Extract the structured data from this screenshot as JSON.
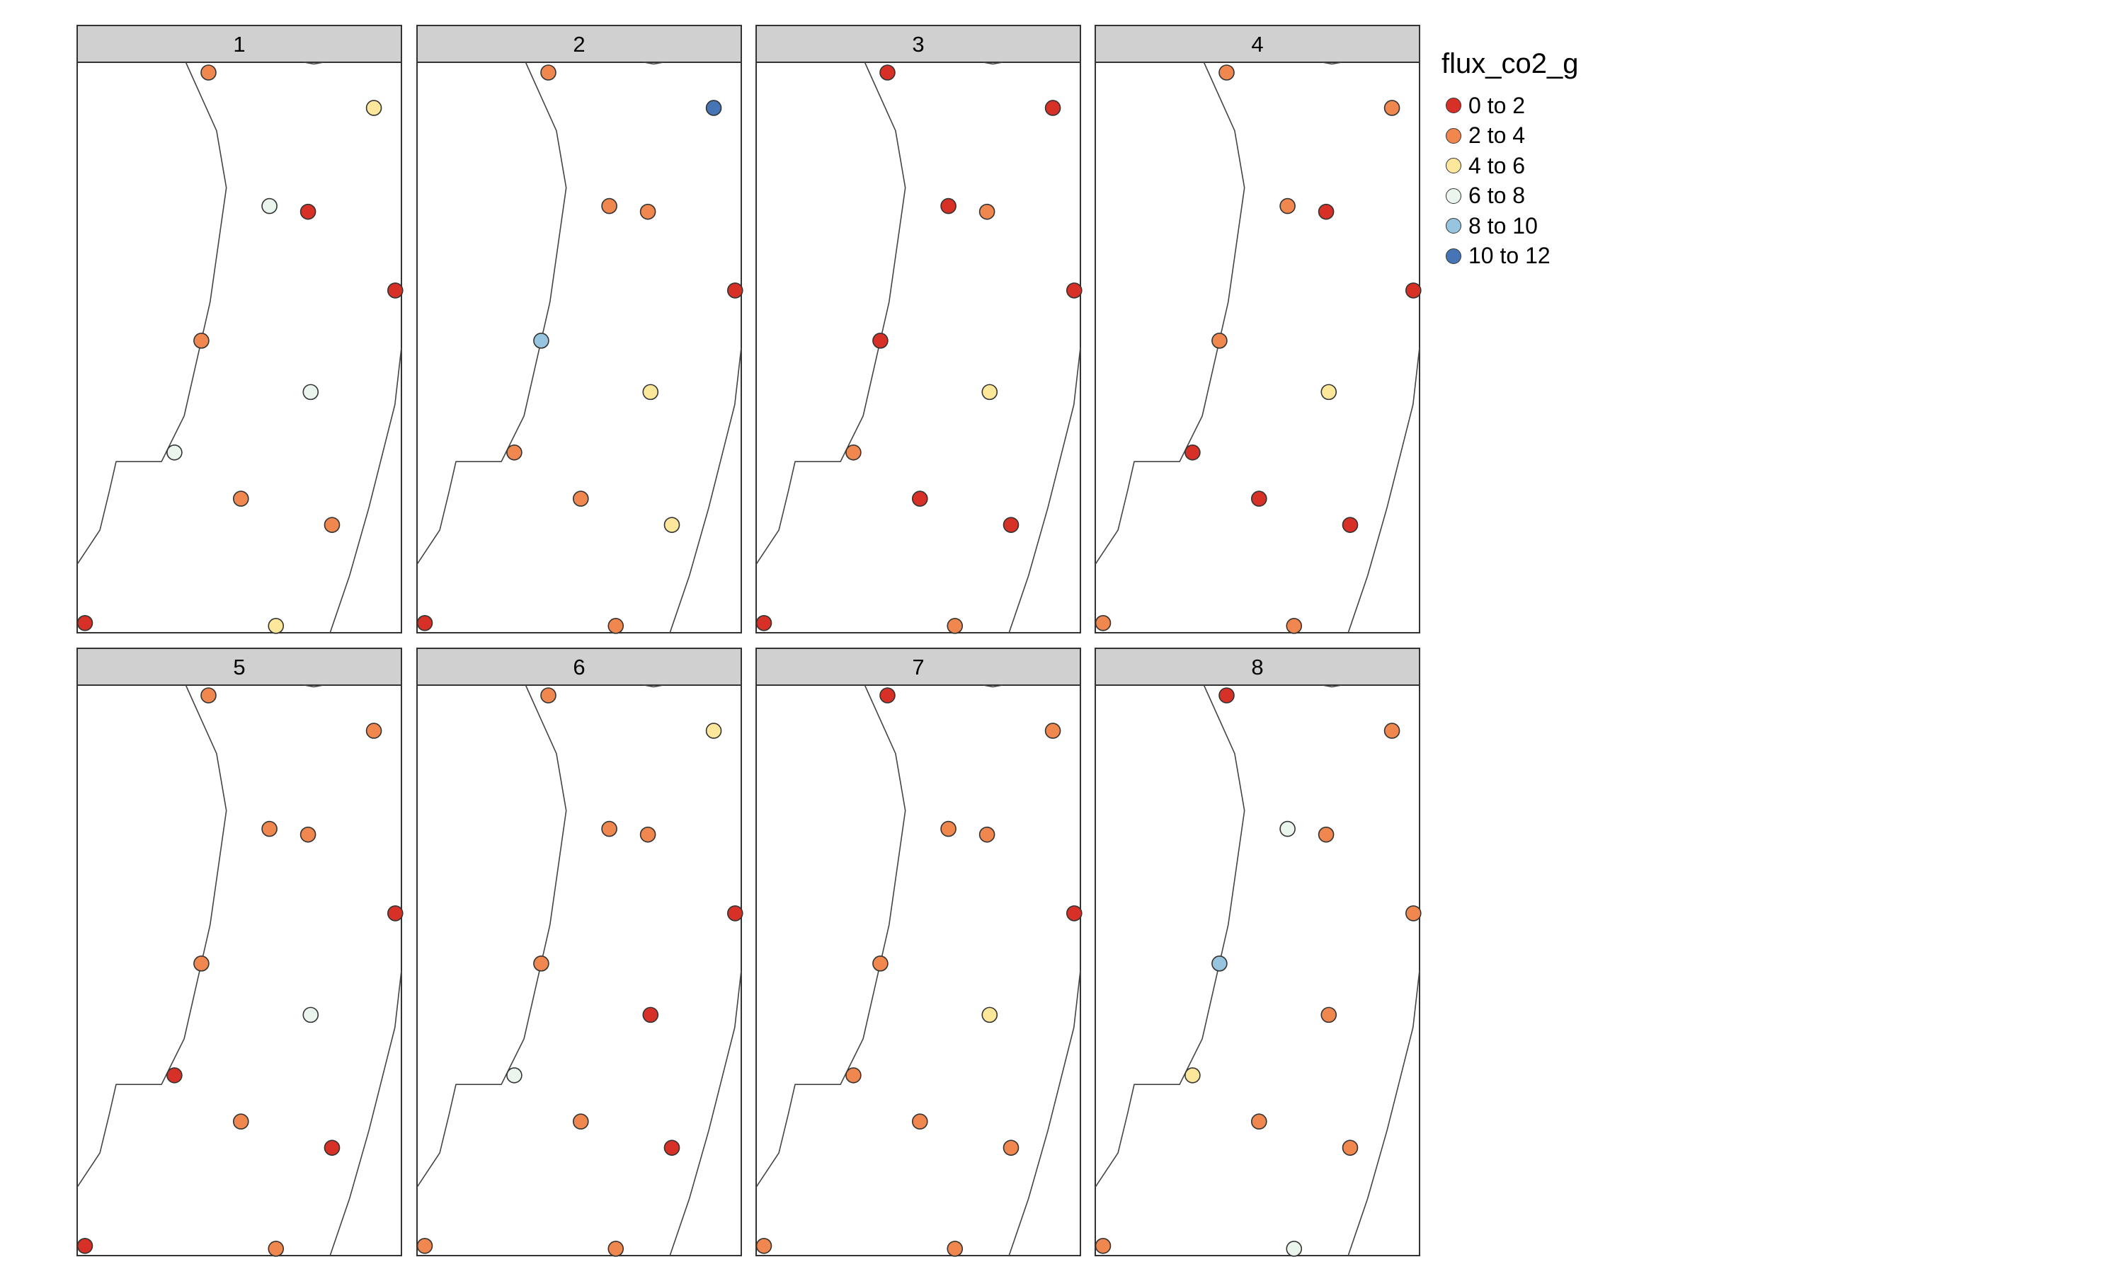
{
  "legend": {
    "title": "flux_co2_g",
    "classes": [
      {
        "label": "0 to 2",
        "color": "#d73027"
      },
      {
        "label": "2 to 4",
        "color": "#f0874e"
      },
      {
        "label": "4 to 6",
        "color": "#fde79a"
      },
      {
        "label": "6 to 8",
        "color": "#eaf5ee"
      },
      {
        "label": "8 to 10",
        "color": "#97c4df"
      },
      {
        "label": "10 to 12",
        "color": "#4575b4"
      }
    ]
  },
  "panels": [
    {
      "label": "1",
      "classes": [
        1,
        2,
        3,
        0,
        0,
        1,
        3,
        3,
        1,
        1,
        0,
        2
      ]
    },
    {
      "label": "2",
      "classes": [
        1,
        5,
        1,
        1,
        0,
        4,
        2,
        1,
        1,
        2,
        0,
        1
      ]
    },
    {
      "label": "3",
      "classes": [
        0,
        0,
        0,
        1,
        0,
        0,
        2,
        1,
        0,
        0,
        0,
        1
      ]
    },
    {
      "label": "4",
      "classes": [
        1,
        1,
        1,
        0,
        0,
        1,
        2,
        0,
        0,
        0,
        1,
        1
      ]
    },
    {
      "label": "5",
      "classes": [
        1,
        1,
        1,
        1,
        0,
        1,
        3,
        0,
        1,
        0,
        0,
        1
      ]
    },
    {
      "label": "6",
      "classes": [
        1,
        2,
        1,
        1,
        0,
        1,
        0,
        3,
        1,
        0,
        1,
        1
      ]
    },
    {
      "label": "7",
      "classes": [
        0,
        1,
        1,
        1,
        0,
        1,
        2,
        1,
        1,
        1,
        1,
        1
      ]
    },
    {
      "label": "8",
      "classes": [
        0,
        1,
        3,
        1,
        1,
        4,
        1,
        2,
        1,
        1,
        1,
        3
      ]
    }
  ]
}
